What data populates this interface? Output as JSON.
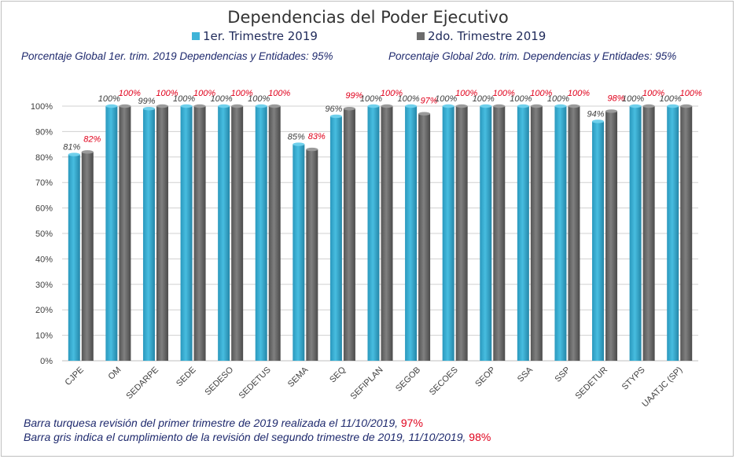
{
  "chart_data": {
    "type": "bar",
    "title": "Dependencias del Poder Ejecutivo",
    "categories": [
      "CJPE",
      "OM",
      "SEDARPE",
      "SEDE",
      "SEDESO",
      "SEDETUS",
      "SEMA",
      "SEQ",
      "SEFIPLAN",
      "SEGOB",
      "SECOES",
      "SEOP",
      "SSA",
      "SSP",
      "SEDETUR",
      "STYPS",
      "UAATJC (SP)"
    ],
    "series": [
      {
        "name": "1er. Trimestre 2019",
        "color": "#3fb4d8",
        "values": [
          81,
          100,
          99,
          100,
          100,
          100,
          85,
          96,
          100,
          100,
          100,
          100,
          100,
          100,
          94,
          100,
          100
        ],
        "labels": [
          "81%",
          "100%",
          "99%",
          "100%",
          "100%",
          "100%",
          "85%",
          "96%",
          "100%",
          "100%",
          "100%",
          "100%",
          "100%",
          "100%",
          "94%",
          "100%",
          "100%"
        ]
      },
      {
        "name": "2do. Trimestre 2019",
        "color": "#7a7a7a",
        "values": [
          82,
          100,
          100,
          100,
          100,
          100,
          83,
          99,
          100,
          97,
          100,
          100,
          100,
          100,
          98,
          100,
          100
        ],
        "labels": [
          "82%",
          "100%",
          "100%",
          "100%",
          "100%",
          "100%",
          "83%",
          "99%",
          "100%",
          "97%",
          "100%",
          "100%",
          "100%",
          "100%",
          "98%",
          "100%",
          "100%"
        ]
      }
    ],
    "ylim": [
      0,
      100
    ],
    "yticks": [
      "0%",
      "10%",
      "20%",
      "30%",
      "40%",
      "50%",
      "60%",
      "70%",
      "80%",
      "90%",
      "100%"
    ],
    "grid": true,
    "legend_position": "top"
  },
  "header": {
    "global1": "Porcentaje Global 1er. trim. 2019 Dependencias y Entidades: 95%",
    "global2": "Porcentaje Global  2do. trim. Dependencias y Entidades: 95%"
  },
  "notes": {
    "line1_text": "Barra turquesa  revisión  del primer trimestre  de 2019  realizada el  11/10/2019,",
    "line1_value": "97%",
    "line2_text": "Barra gris indica el cumplimiento  de la revisión  del  segundo trimestre de 2019,  11/10/2019,",
    "line2_value": "98%"
  },
  "colors": {
    "turquoise": "#3fb4d8",
    "gray": "#7a7a7a",
    "label_red": "#e0001b"
  }
}
